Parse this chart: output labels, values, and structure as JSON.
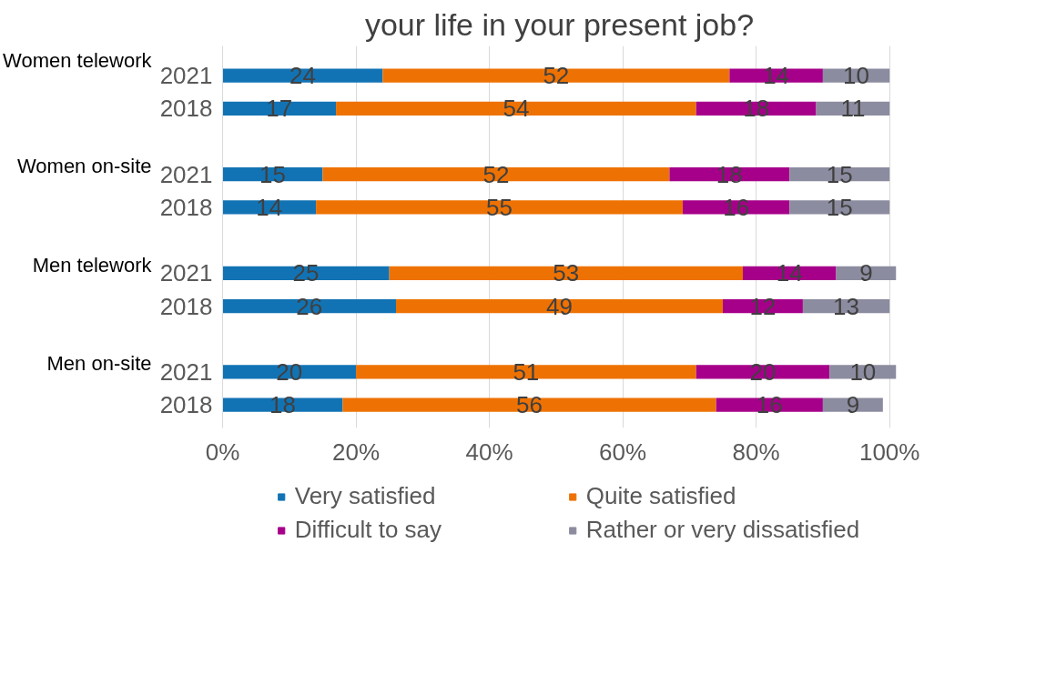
{
  "chart_data": {
    "type": "bar",
    "orientation": "horizontal",
    "stacked": true,
    "title": "your life in your present job?",
    "categories": [
      "2021",
      "2018",
      "2021",
      "2018",
      "2021",
      "2018",
      "2021",
      "2018"
    ],
    "series": [
      {
        "name": "Very satisfied",
        "color": "#1273b4",
        "values": [
          24,
          17,
          15,
          14,
          25,
          26,
          20,
          18
        ]
      },
      {
        "name": "Quite satisfied",
        "color": "#ee7203",
        "values": [
          52,
          54,
          52,
          55,
          53,
          49,
          51,
          56
        ]
      },
      {
        "name": "Difficult to say",
        "color": "#a6008a",
        "values": [
          14,
          18,
          18,
          16,
          14,
          12,
          20,
          16
        ]
      },
      {
        "name": "Rather or very dissatisfied",
        "color": "#8c8ca0",
        "values": [
          10,
          11,
          15,
          15,
          9,
          13,
          10,
          9
        ]
      }
    ],
    "annotations": [
      "Women telework",
      "Women on-site",
      "Men telework",
      "Men on-site"
    ],
    "xlim": [
      0,
      101
    ],
    "xticks": [
      {
        "value": 0,
        "label": "0%"
      },
      {
        "value": 20,
        "label": "20%"
      },
      {
        "value": 40,
        "label": "40%"
      },
      {
        "value": 60,
        "label": "60%"
      },
      {
        "value": 80,
        "label": "80%"
      },
      {
        "value": 100,
        "label": "100%"
      }
    ],
    "data_labels": true,
    "grid": "x",
    "legend": "bottom"
  }
}
